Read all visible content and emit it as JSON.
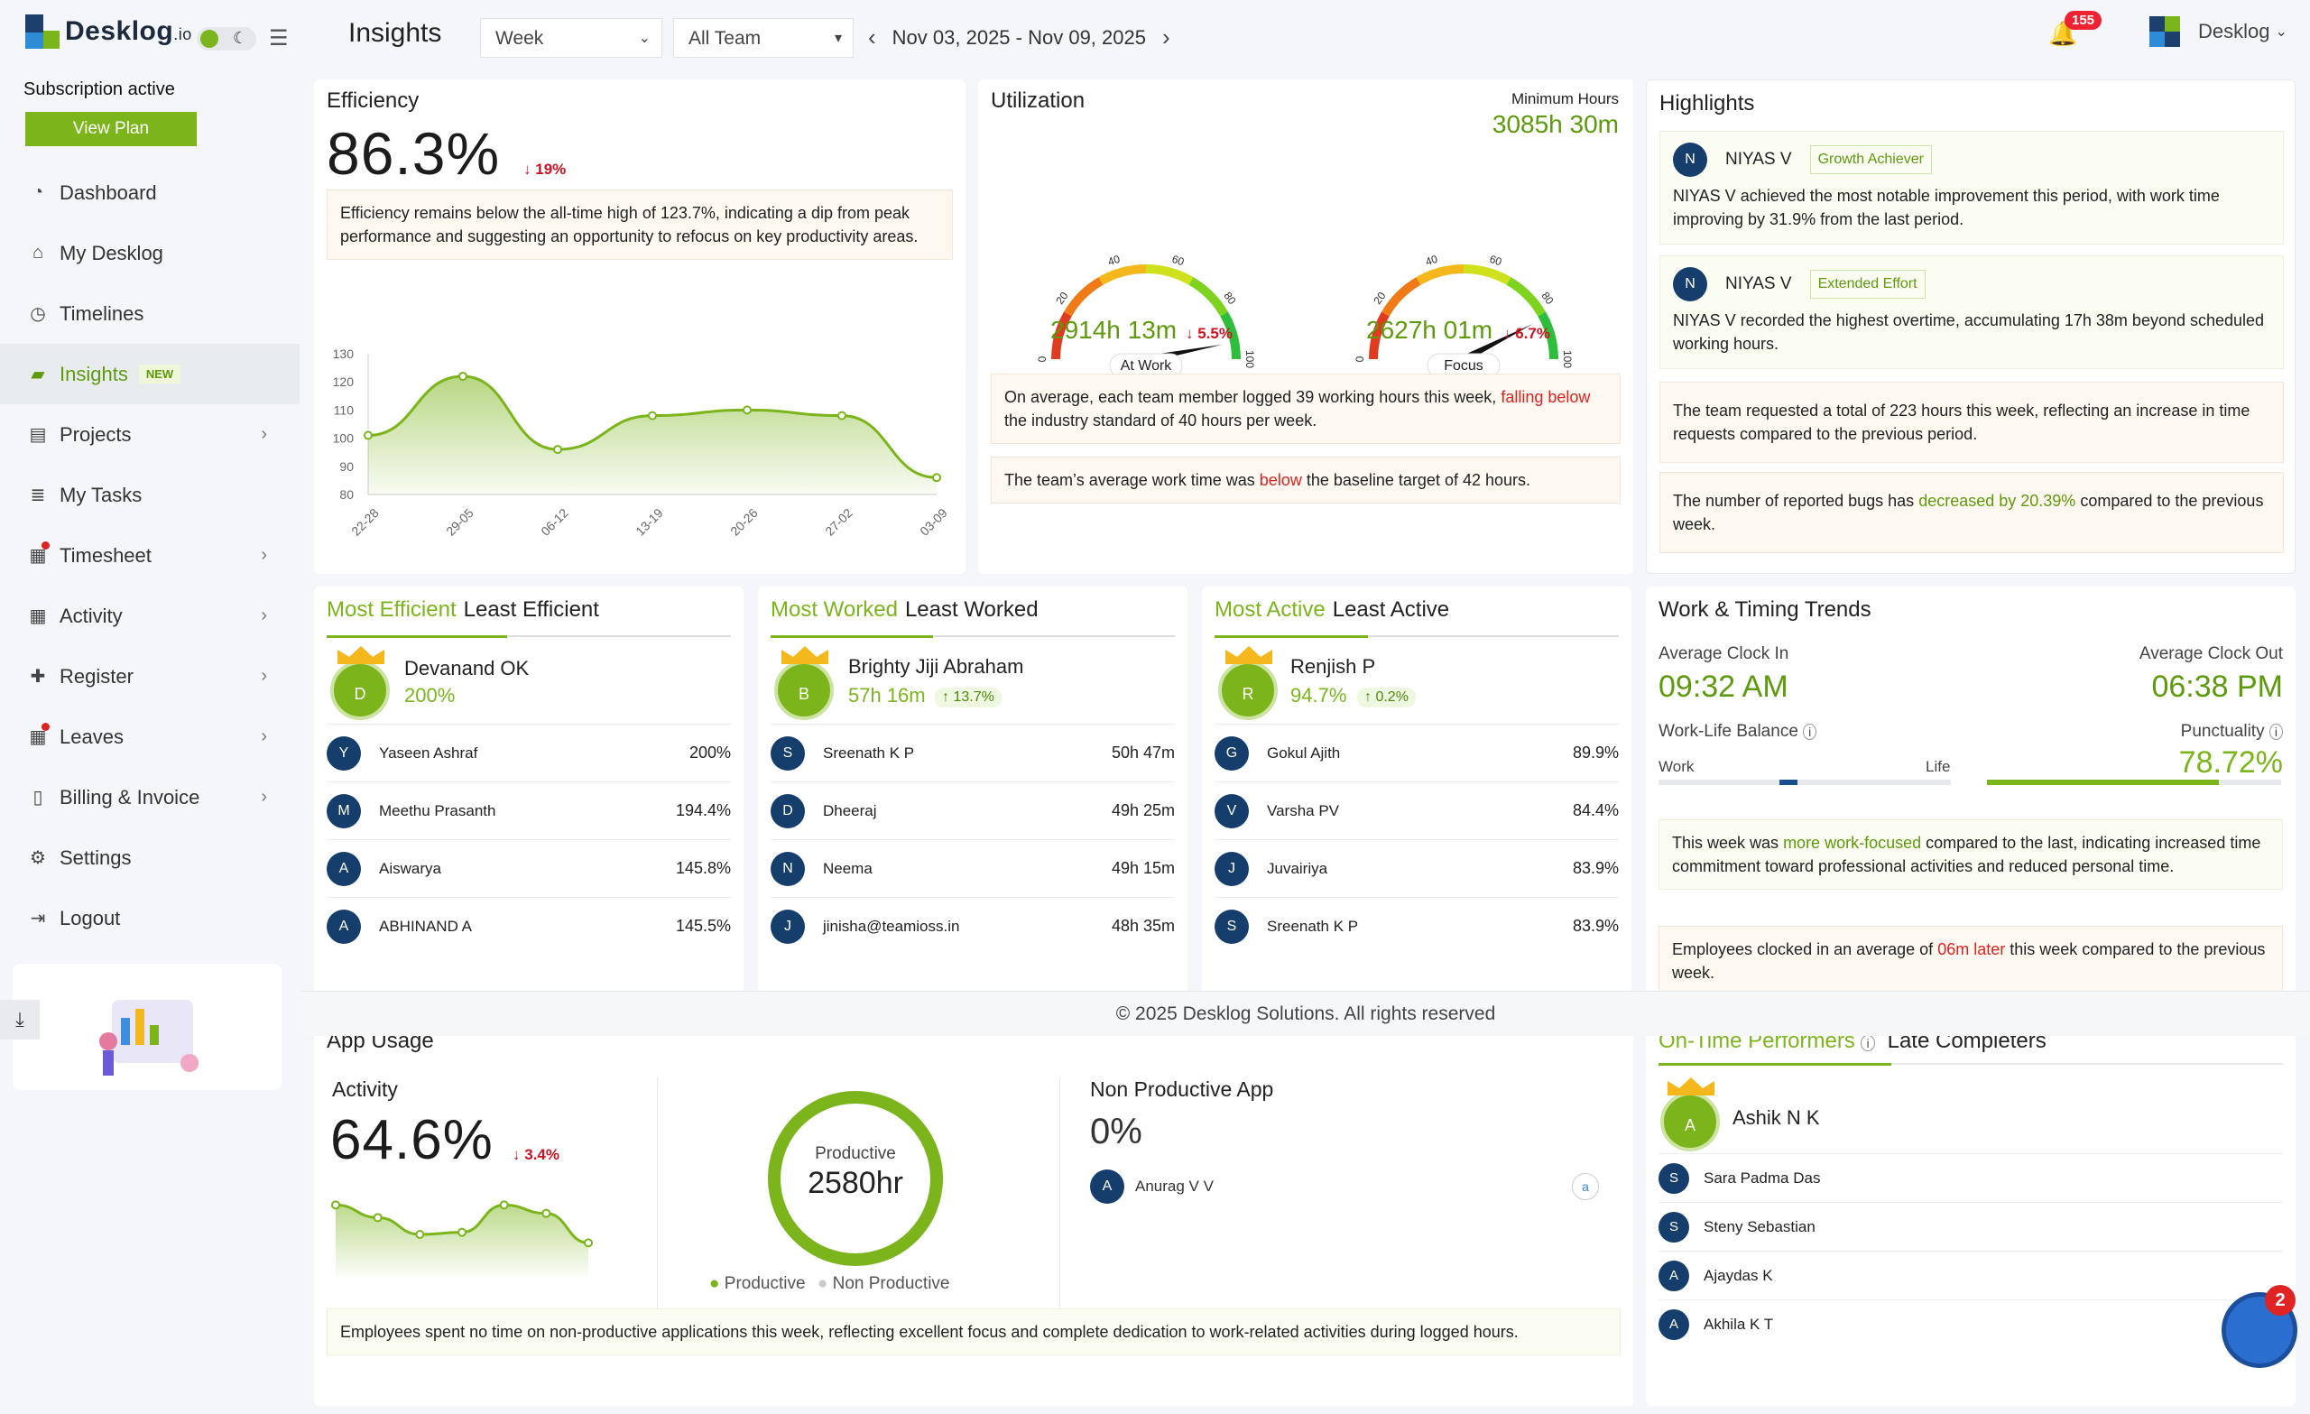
{
  "brand": {
    "name": "Desklog",
    "suffix": ".io"
  },
  "sidebar": {
    "subscription": "Subscription active",
    "view_plan": "View Plan",
    "items": [
      {
        "label": "Dashboard",
        "icon": "speedometer-icon"
      },
      {
        "label": "My Desklog",
        "icon": "home-icon"
      },
      {
        "label": "Timelines",
        "icon": "clock-icon"
      },
      {
        "label": "Insights",
        "icon": "chart-icon",
        "badge": "NEW",
        "active": true
      },
      {
        "label": "Projects",
        "icon": "folder-icon"
      },
      {
        "label": "My Tasks",
        "icon": "list-icon"
      },
      {
        "label": "Timesheet",
        "icon": "calendar-icon"
      },
      {
        "label": "Activity",
        "icon": "grid-icon"
      },
      {
        "label": "Register",
        "icon": "plus-icon"
      },
      {
        "label": "Leaves",
        "icon": "calendar-icon"
      },
      {
        "label": "Billing & Invoice",
        "icon": "document-icon"
      },
      {
        "label": "Settings",
        "icon": "gear-icon"
      },
      {
        "label": "Logout",
        "icon": "logout-icon"
      }
    ]
  },
  "header": {
    "title": "Insights",
    "period": "Week",
    "team": "All Team",
    "date_range": "Nov 03, 2025 - Nov 09, 2025",
    "notifications": "155",
    "org": "Desklog"
  },
  "efficiency": {
    "title": "Efficiency",
    "value": "86.3%",
    "delta": "19%",
    "note": "Efficiency remains below the all-time high of 123.7%, indicating a dip from peak performance and suggesting an opportunity to refocus on key productivity areas.",
    "chart_data": {
      "type": "area",
      "x": [
        "22-28",
        "29-05",
        "06-12",
        "13-19",
        "20-26",
        "27-02",
        "03-09"
      ],
      "values": [
        101,
        122,
        96,
        108,
        110,
        108,
        86
      ],
      "ylim": [
        80,
        130
      ],
      "yticks": [
        "130",
        "120",
        "110",
        "100",
        "90",
        "80"
      ],
      "color": "#7bb51b"
    }
  },
  "utilization": {
    "title": "Utilization",
    "min_hours_label": "Minimum Hours",
    "min_hours": "3085h 30m",
    "gauge_ticks": [
      "0",
      "20",
      "40",
      "60",
      "80",
      "100"
    ],
    "gauges": [
      {
        "label": "At Work",
        "value": "2914h 13m",
        "delta": "5.5%",
        "percent": 94
      },
      {
        "label": "Focus",
        "value": "2627h 01m",
        "delta": "6.7%",
        "percent": 85
      }
    ],
    "note1_a": "On average, each team member logged 39 working hours this week,",
    "note1_red": "falling below",
    "note1_b": "the industry standard of 40 hours per week.",
    "note2_a": "The team’s average work time was",
    "note2_red": "below",
    "note2_b": "the baseline target of 42 hours."
  },
  "highlights": {
    "title": "Highlights",
    "items": [
      {
        "initial": "N",
        "name": "NIYAS V",
        "tag": "Growth Achiever",
        "text": "NIYAS V achieved the most notable improvement this period, with work time improving by 31.9% from the last period."
      },
      {
        "initial": "N",
        "name": "NIYAS V",
        "tag": "Extended Effort",
        "text": "NIYAS V recorded the highest overtime, accumulating 17h 38m beyond scheduled working hours."
      }
    ],
    "note1": "The team requested a total of 223 hours this week, reflecting an increase in time requests compared to the previous period.",
    "note2_a": "The number of reported bugs has",
    "note2_green": "decreased by 20.39%",
    "note2_b": "compared to the previous week."
  },
  "efficient": {
    "tab_a": "Most Efficient",
    "tab_b": "Least Efficient",
    "top": {
      "initial": "D",
      "name": "Devanand OK",
      "value": "200%"
    },
    "rows": [
      {
        "initial": "Y",
        "name": "Yaseen Ashraf",
        "value": "200%"
      },
      {
        "initial": "M",
        "name": "Meethu Prasanth",
        "value": "194.4%"
      },
      {
        "initial": "A",
        "name": "Aiswarya",
        "value": "145.8%"
      },
      {
        "initial": "A",
        "name": "ABHINAND A",
        "value": "145.5%"
      }
    ]
  },
  "worked": {
    "tab_a": "Most Worked",
    "tab_b": "Least Worked",
    "top": {
      "initial": "B",
      "name": "Brighty Jiji Abraham",
      "value": "57h 16m",
      "delta": "13.7%"
    },
    "rows": [
      {
        "initial": "S",
        "name": "Sreenath K P",
        "value": "50h 47m"
      },
      {
        "initial": "D",
        "name": "Dheeraj",
        "value": "49h 25m"
      },
      {
        "initial": "N",
        "name": "Neema",
        "value": "49h 15m"
      },
      {
        "initial": "J",
        "name": "jinisha@teamioss.in",
        "value": "48h 35m"
      }
    ]
  },
  "active": {
    "tab_a": "Most Active",
    "tab_b": "Least Active",
    "top": {
      "initial": "R",
      "name": "Renjish P",
      "value": "94.7%",
      "delta": "0.2%"
    },
    "rows": [
      {
        "initial": "G",
        "name": "Gokul Ajith",
        "value": "89.9%"
      },
      {
        "initial": "V",
        "name": "Varsha PV",
        "value": "84.4%"
      },
      {
        "initial": "J",
        "name": "Juvairiya",
        "value": "83.9%"
      },
      {
        "initial": "S",
        "name": "Sreenath K P",
        "value": "83.9%"
      }
    ]
  },
  "trends": {
    "title": "Work & Timing Trends",
    "clock_in_label": "Average Clock In",
    "clock_in": "09:32 AM",
    "clock_out_label": "Average Clock Out",
    "clock_out": "06:38 PM",
    "wlb_label": "Work-Life Balance",
    "work": "Work",
    "life": "Life",
    "punctuality_label": "Punctuality",
    "punctuality": "78.72%",
    "punctuality_fraction": 0.7872,
    "note1_a": "This week was",
    "note1_green": "more work-focused",
    "note1_b": "compared to the last, indicating increased time commitment toward professional activities and reduced personal time.",
    "note2_a": "Employees clocked in an average of",
    "note2_red": "06m later",
    "note2_b": "this week compared to the previous week."
  },
  "footer": "© 2025 Desklog Solutions. All rights reserved",
  "app_usage": {
    "title": "App Usage",
    "activity_label": "Activity",
    "activity": "64.6%",
    "activity_delta": "3.4%",
    "spark": [
      86,
      80,
      72,
      73,
      86,
      82,
      68
    ],
    "donut_label": "Productive",
    "donut_value": "2580hr",
    "productive_fraction": 1.0,
    "legend_productive": "Productive",
    "legend_non": "Non Productive",
    "np_title": "Non Productive App",
    "np_value": "0%",
    "np_user": {
      "initial": "A",
      "name": "Anurag V V"
    },
    "note": "Employees spent no time on non-productive applications this week, reflecting excellent focus and complete dedication to work-related activities during logged hours."
  },
  "ontime": {
    "tab_a": "On-Time Performers",
    "tab_b": "Late Completers",
    "top": {
      "initial": "A",
      "name": "Ashik N K"
    },
    "rows": [
      {
        "initial": "S",
        "name": "Sara Padma Das"
      },
      {
        "initial": "S",
        "name": "Steny Sebastian"
      },
      {
        "initial": "A",
        "name": "Ajaydas K"
      },
      {
        "initial": "A",
        "name": "Akhila K T"
      }
    ]
  },
  "chat_badge": "2"
}
